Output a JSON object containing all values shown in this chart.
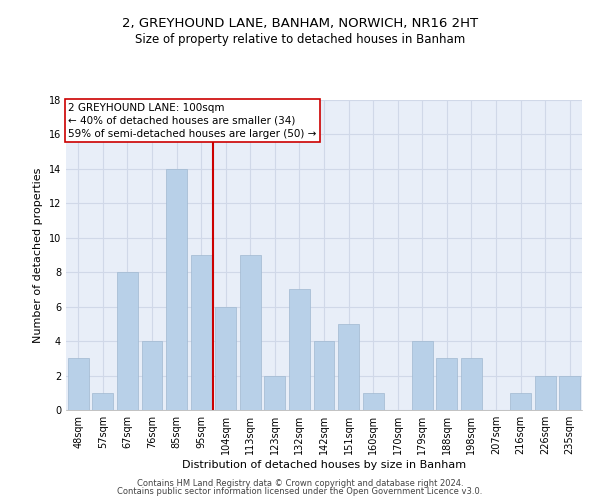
{
  "title1": "2, GREYHOUND LANE, BANHAM, NORWICH, NR16 2HT",
  "title2": "Size of property relative to detached houses in Banham",
  "xlabel": "Distribution of detached houses by size in Banham",
  "ylabel": "Number of detached properties",
  "categories": [
    "48sqm",
    "57sqm",
    "67sqm",
    "76sqm",
    "85sqm",
    "95sqm",
    "104sqm",
    "113sqm",
    "123sqm",
    "132sqm",
    "142sqm",
    "151sqm",
    "160sqm",
    "170sqm",
    "179sqm",
    "188sqm",
    "198sqm",
    "207sqm",
    "216sqm",
    "226sqm",
    "235sqm"
  ],
  "values": [
    3,
    1,
    8,
    4,
    14,
    9,
    6,
    9,
    2,
    7,
    4,
    5,
    1,
    0,
    4,
    3,
    3,
    0,
    1,
    2,
    2
  ],
  "bar_color": "#b8d0e8",
  "bar_edgecolor": "#a0b8d0",
  "vline_x_index": 5.5,
  "vline_color": "#cc0000",
  "annotation_text": "2 GREYHOUND LANE: 100sqm\n← 40% of detached houses are smaller (34)\n59% of semi-detached houses are larger (50) →",
  "annotation_box_color": "#ffffff",
  "annotation_box_edgecolor": "#cc0000",
  "ylim": [
    0,
    18
  ],
  "yticks": [
    0,
    2,
    4,
    6,
    8,
    10,
    12,
    14,
    16,
    18
  ],
  "grid_color": "#d0d8e8",
  "background_color": "#e8eef8",
  "footer1": "Contains HM Land Registry data © Crown copyright and database right 2024.",
  "footer2": "Contains public sector information licensed under the Open Government Licence v3.0.",
  "title1_fontsize": 9.5,
  "title2_fontsize": 8.5,
  "xlabel_fontsize": 8,
  "ylabel_fontsize": 8,
  "tick_fontsize": 7,
  "annotation_fontsize": 7.5,
  "footer_fontsize": 6
}
